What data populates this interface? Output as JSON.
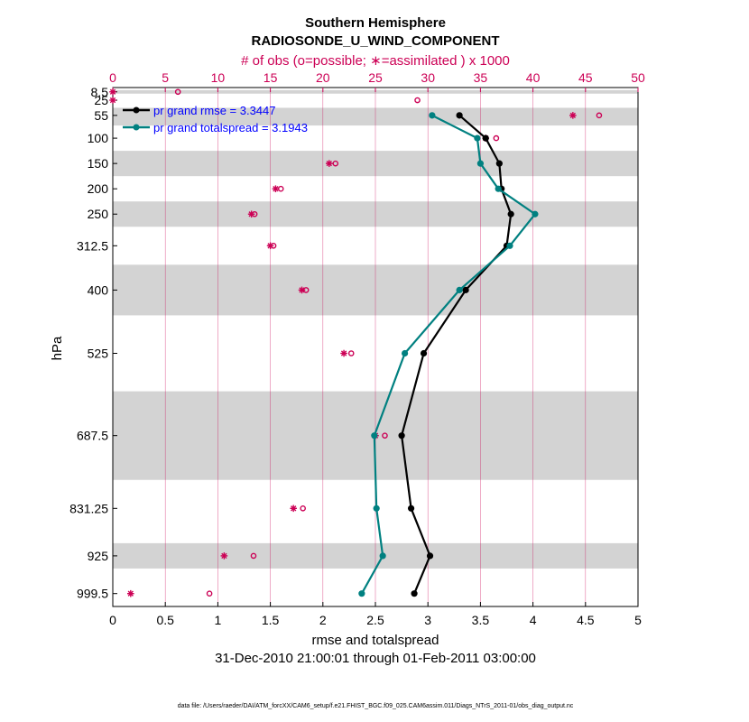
{
  "chart_data": {
    "type": "line",
    "title": "Southern Hemisphere",
    "subtitle": "RADIOSONDE_U_WIND_COMPONENT",
    "top_axis_label": "# of obs (o=possible; ∗=assimilated ) x 1000",
    "xlabel": "rmse and totalspread",
    "ylabel": "hPa",
    "date_range": "31-Dec-2010 21:00:01 through 01-Feb-2011 03:00:00",
    "footer": "data file: /Users/raeder/DAI/ATM_forcXX/CAM6_setup/f.e21.FHIST_BGC.f09_025.CAM6assim.011/Diags_NTrS_2011-01/obs_diag_output.nc",
    "xlim": [
      0,
      5
    ],
    "x_ticks": [
      "0",
      "0.5",
      "1",
      "1.5",
      "2",
      "2.5",
      "3",
      "3.5",
      "4",
      "4.5",
      "5"
    ],
    "top_xlim": [
      0,
      50
    ],
    "top_ticks": [
      "0",
      "5",
      "10",
      "15",
      "20",
      "25",
      "30",
      "35",
      "40",
      "45",
      "50"
    ],
    "levels": [
      8.5,
      25,
      55,
      100,
      150,
      200,
      250,
      312.5,
      400,
      525,
      687.5,
      831.25,
      925,
      999.5
    ],
    "level_labels": [
      "8.5",
      "25",
      "55",
      "100",
      "150",
      "200",
      "250",
      "312.5",
      "400",
      "525",
      "687.5",
      "831.25",
      "925",
      "999.5"
    ],
    "ylim_hpa": [
      1025,
      0
    ],
    "shaded_bands_hpa": [
      [
        5,
        12
      ],
      [
        40,
        75
      ],
      [
        125,
        175
      ],
      [
        225,
        275
      ],
      [
        350,
        450
      ],
      [
        600,
        775
      ],
      [
        900,
        950
      ]
    ],
    "series": [
      {
        "name": "rmse",
        "legend": "pr grand rmse = 3.3447",
        "color": "#000000",
        "points": [
          [
            3.3,
            55
          ],
          [
            3.55,
            100
          ],
          [
            3.68,
            150
          ],
          [
            3.7,
            200
          ],
          [
            3.79,
            250
          ],
          [
            3.75,
            312.5
          ],
          [
            3.36,
            400
          ],
          [
            2.96,
            525
          ],
          [
            2.75,
            687.5
          ],
          [
            2.84,
            831.25
          ],
          [
            3.02,
            925
          ],
          [
            2.87,
            999.5
          ]
        ]
      },
      {
        "name": "totalspread",
        "legend": "pr grand totalspread = 3.1943",
        "color": "#008080",
        "points": [
          [
            3.04,
            55
          ],
          [
            3.47,
            100
          ],
          [
            3.5,
            150
          ],
          [
            3.67,
            200
          ],
          [
            4.02,
            250
          ],
          [
            3.78,
            312.5
          ],
          [
            3.3,
            400
          ],
          [
            2.78,
            525
          ],
          [
            2.49,
            687.5
          ],
          [
            2.51,
            831.25
          ],
          [
            2.57,
            925
          ],
          [
            2.37,
            999.5
          ]
        ]
      }
    ],
    "obs_possible_x1000": [
      [
        6.2,
        8.5
      ],
      [
        29.0,
        25
      ],
      [
        46.3,
        55
      ],
      [
        36.5,
        100
      ],
      [
        21.2,
        150
      ],
      [
        16.0,
        200
      ],
      [
        13.5,
        250
      ],
      [
        15.3,
        312.5
      ],
      [
        18.4,
        400
      ],
      [
        22.7,
        525
      ],
      [
        25.9,
        687.5
      ],
      [
        18.1,
        831.25
      ],
      [
        13.4,
        925
      ],
      [
        9.2,
        999.5
      ]
    ],
    "obs_assimilated_x1000": [
      [
        0.0,
        8.5
      ],
      [
        0.0,
        25
      ],
      [
        43.8,
        55
      ],
      [
        35.5,
        100
      ],
      [
        20.6,
        150
      ],
      [
        15.5,
        200
      ],
      [
        13.2,
        250
      ],
      [
        15.0,
        312.5
      ],
      [
        18.0,
        400
      ],
      [
        22.0,
        525
      ],
      [
        25.0,
        687.5
      ],
      [
        17.2,
        831.25
      ],
      [
        10.6,
        925
      ],
      [
        1.7,
        999.5
      ]
    ],
    "colors": {
      "obs": "#cc0055",
      "legend_text": "#0000ff",
      "band": "#d3d3d3",
      "grid": "#cc0055"
    }
  }
}
